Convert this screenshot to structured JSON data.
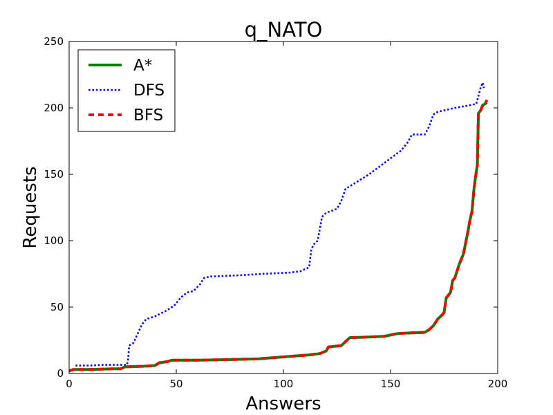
{
  "chart_data": {
    "type": "line",
    "title": "q_NATO",
    "xlabel": "Answers",
    "ylabel": "Requests",
    "xlim": [
      0,
      200
    ],
    "ylim": [
      0,
      250
    ],
    "xticks": [
      0,
      50,
      100,
      150,
      200
    ],
    "yticks": [
      0,
      50,
      100,
      150,
      200,
      250
    ],
    "grid": false,
    "legend_position": "top-left",
    "series": [
      {
        "name": "A*",
        "color": "#008000",
        "style": "solid",
        "points": [
          [
            0,
            2
          ],
          [
            2,
            3
          ],
          [
            10,
            3
          ],
          [
            20,
            3.5
          ],
          [
            24,
            3.5
          ],
          [
            26,
            5
          ],
          [
            35,
            5.5
          ],
          [
            40,
            6
          ],
          [
            42,
            8
          ],
          [
            46,
            9
          ],
          [
            48,
            10
          ],
          [
            60,
            10
          ],
          [
            75,
            10.5
          ],
          [
            88,
            11
          ],
          [
            100,
            12.5
          ],
          [
            112,
            14
          ],
          [
            117,
            15
          ],
          [
            120,
            17
          ],
          [
            121,
            20
          ],
          [
            127,
            21
          ],
          [
            131,
            27
          ],
          [
            140,
            27.5
          ],
          [
            147,
            28
          ],
          [
            150,
            29
          ],
          [
            153,
            30
          ],
          [
            158,
            30.5
          ],
          [
            166,
            31
          ],
          [
            168,
            33
          ],
          [
            170,
            36
          ],
          [
            172,
            41
          ],
          [
            174,
            44
          ],
          [
            175,
            46
          ],
          [
            176,
            57
          ],
          [
            178,
            61
          ],
          [
            179,
            70
          ],
          [
            180,
            72
          ],
          [
            182,
            82
          ],
          [
            184,
            90
          ],
          [
            185,
            98
          ],
          [
            186,
            106
          ],
          [
            187,
            115
          ],
          [
            188,
            122
          ],
          [
            189,
            140
          ],
          [
            190,
            152
          ],
          [
            190.5,
            157
          ],
          [
            191,
            196
          ],
          [
            192,
            198
          ],
          [
            193,
            202
          ],
          [
            194,
            203
          ],
          [
            195,
            204
          ]
        ]
      },
      {
        "name": "DFS",
        "color": "#0000ff",
        "style": "dotted",
        "points": [
          [
            3,
            6
          ],
          [
            10,
            6
          ],
          [
            15,
            6.5
          ],
          [
            22,
            6.5
          ],
          [
            27,
            6.5
          ],
          [
            27.5,
            10
          ],
          [
            28,
            21
          ],
          [
            30,
            23
          ],
          [
            32,
            30
          ],
          [
            34,
            37
          ],
          [
            36,
            41
          ],
          [
            40,
            43
          ],
          [
            45,
            47
          ],
          [
            49,
            51
          ],
          [
            52,
            57
          ],
          [
            55,
            61
          ],
          [
            58,
            62
          ],
          [
            61,
            67
          ],
          [
            63,
            72
          ],
          [
            66,
            73
          ],
          [
            80,
            74
          ],
          [
            90,
            75
          ],
          [
            103,
            76
          ],
          [
            108,
            77
          ],
          [
            112,
            80
          ],
          [
            113,
            93
          ],
          [
            114,
            97
          ],
          [
            116,
            100
          ],
          [
            118,
            118
          ],
          [
            120,
            121
          ],
          [
            125,
            124
          ],
          [
            127,
            130
          ],
          [
            129,
            139
          ],
          [
            133,
            143
          ],
          [
            140,
            150
          ],
          [
            150,
            162
          ],
          [
            155,
            168
          ],
          [
            158,
            174
          ],
          [
            160,
            180
          ],
          [
            166,
            180
          ],
          [
            168,
            186
          ],
          [
            170,
            195
          ],
          [
            172,
            197
          ],
          [
            180,
            200
          ],
          [
            187,
            202
          ],
          [
            190,
            203
          ],
          [
            192,
            215
          ],
          [
            193,
            219
          ],
          [
            193.5,
            215
          ]
        ]
      },
      {
        "name": "BFS",
        "color": "#ff0000",
        "style": "dashed",
        "points": [
          [
            0,
            2
          ],
          [
            2,
            3
          ],
          [
            10,
            3
          ],
          [
            20,
            3.5
          ],
          [
            24,
            3.5
          ],
          [
            26,
            5
          ],
          [
            35,
            5.5
          ],
          [
            40,
            6
          ],
          [
            42,
            8
          ],
          [
            46,
            9
          ],
          [
            48,
            10
          ],
          [
            60,
            10
          ],
          [
            75,
            10.5
          ],
          [
            88,
            11
          ],
          [
            100,
            12.5
          ],
          [
            112,
            14
          ],
          [
            117,
            15
          ],
          [
            120,
            17
          ],
          [
            121,
            20
          ],
          [
            127,
            21
          ],
          [
            131,
            27
          ],
          [
            140,
            27.5
          ],
          [
            147,
            28
          ],
          [
            150,
            29
          ],
          [
            153,
            30
          ],
          [
            158,
            30.5
          ],
          [
            166,
            31
          ],
          [
            168,
            33
          ],
          [
            170,
            36
          ],
          [
            172,
            41
          ],
          [
            174,
            44
          ],
          [
            175,
            46
          ],
          [
            176,
            57
          ],
          [
            178,
            61
          ],
          [
            179,
            70
          ],
          [
            180,
            72
          ],
          [
            182,
            82
          ],
          [
            184,
            90
          ],
          [
            185,
            98
          ],
          [
            186,
            106
          ],
          [
            187,
            115
          ],
          [
            188,
            122
          ],
          [
            189,
            140
          ],
          [
            190,
            152
          ],
          [
            190.5,
            157
          ],
          [
            191,
            196
          ],
          [
            192,
            198
          ],
          [
            193,
            202
          ],
          [
            194,
            203
          ],
          [
            195,
            206
          ]
        ]
      }
    ]
  }
}
